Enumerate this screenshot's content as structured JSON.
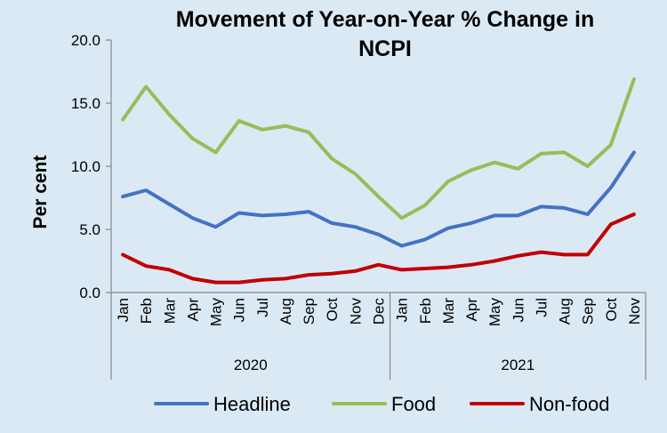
{
  "chart_data": {
    "type": "line",
    "title_lines": [
      "Movement of Year-on-Year % Change in",
      "NCPI"
    ],
    "ylabel": "Per cent",
    "ylim": [
      0,
      20
    ],
    "yticks": [
      "0.0",
      "5.0",
      "10.0",
      "15.0",
      "20.0"
    ],
    "grid": false,
    "legend_position": "bottom",
    "categories": [
      "Jan",
      "Feb",
      "Mar",
      "Apr",
      "May",
      "Jun",
      "Jul",
      "Aug",
      "Sep",
      "Oct",
      "Nov",
      "Dec",
      "Jan",
      "Feb",
      "Mar",
      "Apr",
      "May",
      "Jun",
      "Jul",
      "Aug",
      "Sep",
      "Oct",
      "Nov"
    ],
    "groups": [
      {
        "label": "2020",
        "count": 12
      },
      {
        "label": "2021",
        "count": 11
      }
    ],
    "series": [
      {
        "name": "Headline",
        "color": "#4472c4",
        "values": [
          7.6,
          8.1,
          7.0,
          5.9,
          5.2,
          6.3,
          6.1,
          6.2,
          6.4,
          5.5,
          5.2,
          4.6,
          3.7,
          4.2,
          5.1,
          5.5,
          6.1,
          6.1,
          6.8,
          6.7,
          6.2,
          8.3,
          11.1
        ]
      },
      {
        "name": "Food",
        "color": "#9bbb59",
        "values": [
          13.7,
          16.3,
          14.1,
          12.2,
          11.1,
          13.6,
          12.9,
          13.2,
          12.7,
          10.6,
          9.4,
          7.6,
          5.9,
          6.9,
          8.8,
          9.7,
          10.3,
          9.8,
          11.0,
          11.1,
          10.0,
          11.7,
          16.9
        ]
      },
      {
        "name": "Non-food",
        "color": "#c00000",
        "values": [
          3.0,
          2.1,
          1.8,
          1.1,
          0.8,
          0.8,
          1.0,
          1.1,
          1.4,
          1.5,
          1.7,
          2.2,
          1.8,
          1.9,
          2.0,
          2.2,
          2.5,
          2.9,
          3.2,
          3.0,
          3.0,
          5.4,
          6.2
        ]
      }
    ]
  }
}
